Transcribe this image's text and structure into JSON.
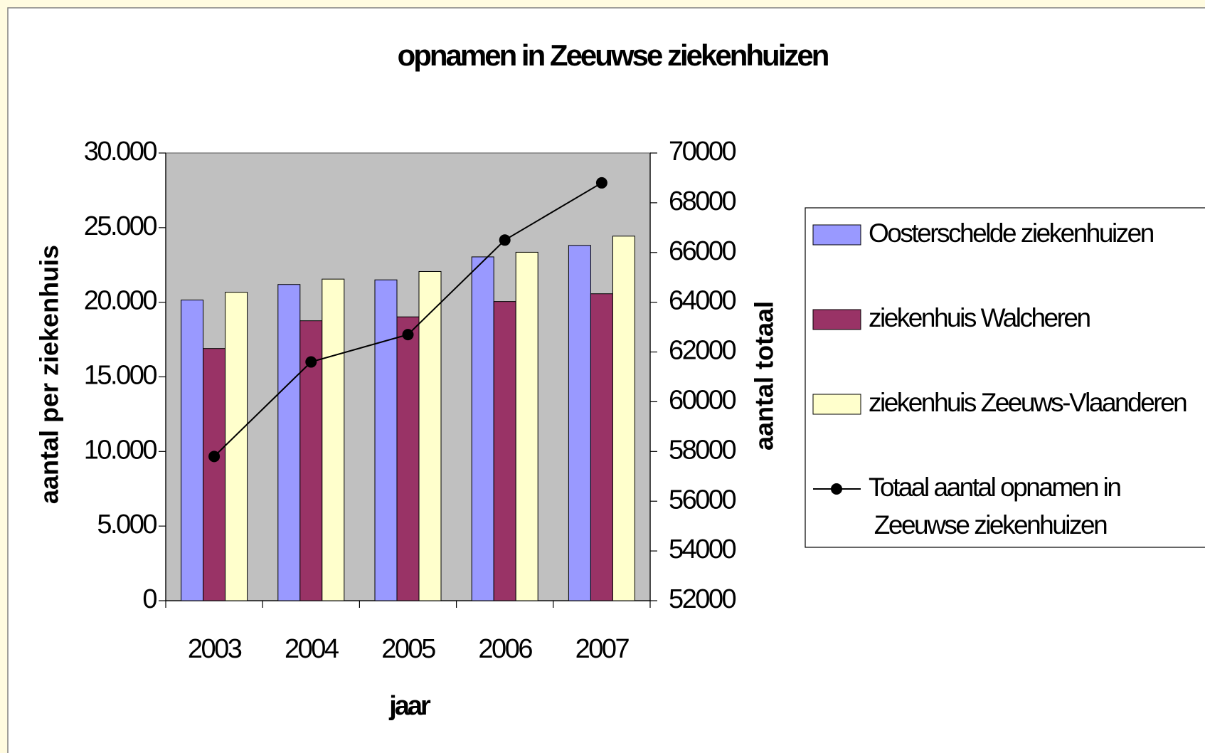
{
  "chart_data": {
    "type": "bar",
    "title": "opnamen in Zeeuwse ziekenhuizen",
    "xlabel": "jaar",
    "ylabel": "aantal per ziekenhuis",
    "y2label": "aantal totaal",
    "categories": [
      "2003",
      "2004",
      "2005",
      "2006",
      "2007"
    ],
    "series": [
      {
        "name": "Oosterschelde ziekenhuizen",
        "color": "#9999ff",
        "type": "bar",
        "values": [
          20150,
          21190,
          21500,
          23040,
          23810
        ]
      },
      {
        "name": "ziekenhuis Walcheren",
        "color": "#993366",
        "type": "bar",
        "values": [
          16900,
          18760,
          19020,
          20050,
          20570
        ]
      },
      {
        "name": "ziekenhuis Zeeuws-Vlaanderen",
        "color": "#ffffcc",
        "type": "bar",
        "values": [
          20670,
          21550,
          22060,
          23350,
          24430
        ]
      },
      {
        "name": "Totaal aantal opnamen in Zeeuwse ziekenhuizen",
        "color": "#000000",
        "type": "line",
        "axis": "y2",
        "values": [
          57800,
          61600,
          62700,
          66500,
          68800
        ]
      }
    ],
    "ylim": [
      0,
      30000
    ],
    "yticks": [
      0,
      {
        "value": 5000,
        "label": "5.000"
      },
      {
        "value": 10000,
        "label": "10.000"
      },
      {
        "value": 15000,
        "label": "15.000"
      },
      {
        "value": 20000,
        "label": "20.000"
      },
      {
        "value": 25000,
        "label": "25.000"
      },
      {
        "value": 30000,
        "label": "30.000"
      }
    ],
    "y2lim": [
      52000,
      70000
    ],
    "y2ticks": [
      52000,
      54000,
      56000,
      58000,
      60000,
      62000,
      64000,
      66000,
      68000,
      70000
    ],
    "plot_background": "#c0c0c0",
    "legend": "right"
  }
}
